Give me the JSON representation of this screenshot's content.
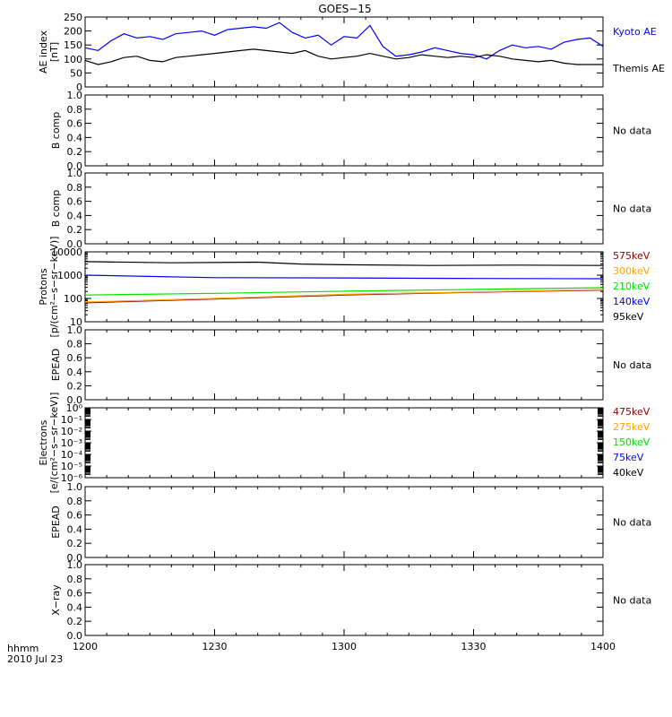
{
  "title": "GOES−15",
  "time_axis": {
    "ticks": [
      "1200",
      "1230",
      "1300",
      "1330",
      "1400"
    ],
    "corner_label_1": "hhmm",
    "corner_label_2": "2010 Jul 23"
  },
  "chart_data": [
    {
      "type": "line",
      "panel": "ae-index",
      "ylabel": "AE index",
      "yunit": "[nT]",
      "ylim": [
        0,
        250
      ],
      "yticks": [
        "0",
        "50",
        "100",
        "150",
        "200",
        "250"
      ],
      "x_unit": "minutes after 12:00 UT",
      "series": [
        {
          "name": "Kyoto AE",
          "color": "#0000ff",
          "x": [
            0,
            3,
            6,
            9,
            12,
            15,
            18,
            21,
            24,
            27,
            30,
            33,
            36,
            39,
            42,
            45,
            48,
            51,
            54,
            57,
            60,
            63,
            66,
            69,
            72,
            75,
            78,
            81,
            84,
            87,
            90,
            93,
            96,
            99,
            102,
            105,
            108,
            111,
            114,
            117,
            120
          ],
          "y": [
            140,
            130,
            165,
            190,
            175,
            180,
            170,
            190,
            195,
            200,
            185,
            205,
            210,
            215,
            210,
            230,
            195,
            175,
            185,
            150,
            180,
            175,
            220,
            145,
            110,
            115,
            125,
            140,
            130,
            120,
            115,
            100,
            130,
            150,
            140,
            145,
            135,
            160,
            170,
            175,
            145
          ]
        },
        {
          "name": "Themis AE",
          "color": "#000000",
          "x": [
            0,
            3,
            6,
            9,
            12,
            15,
            18,
            21,
            24,
            27,
            30,
            33,
            36,
            39,
            42,
            45,
            48,
            51,
            54,
            57,
            60,
            63,
            66,
            69,
            72,
            75,
            78,
            81,
            84,
            87,
            90,
            93,
            96,
            99,
            102,
            105,
            108,
            111,
            114,
            117,
            120
          ],
          "y": [
            95,
            80,
            90,
            105,
            110,
            95,
            90,
            105,
            110,
            115,
            120,
            125,
            130,
            135,
            130,
            125,
            120,
            130,
            110,
            100,
            105,
            110,
            120,
            110,
            100,
            105,
            115,
            110,
            105,
            110,
            105,
            115,
            110,
            100,
            95,
            90,
            95,
            85,
            80,
            80,
            80
          ]
        }
      ]
    },
    {
      "type": "line",
      "panel": "b-comp-1",
      "ylabel": "B comp",
      "ylim": [
        0,
        1
      ],
      "yticks": [
        "0.0",
        "0.2",
        "0.4",
        "0.6",
        "0.8",
        "1.0"
      ],
      "status": "No data",
      "series": []
    },
    {
      "type": "line",
      "panel": "b-comp-2",
      "ylabel": "B comp",
      "ylim": [
        0,
        1
      ],
      "yticks": [
        "0.0",
        "0.2",
        "0.4",
        "0.6",
        "0.8",
        "1.0"
      ],
      "status": "No data",
      "series": []
    },
    {
      "type": "line",
      "panel": "protons",
      "ylabel": "Protons",
      "yunit": "[p/(cm²−s−sr−keV)]",
      "yscale": "log",
      "ylim": [
        10,
        10000
      ],
      "yticks": [
        "10",
        "100",
        "1000",
        "10000"
      ],
      "x_unit": "minutes after 12:00 UT",
      "series": [
        {
          "name": "575keV",
          "color": "#8b0000",
          "x": [
            0,
            30,
            60,
            90,
            120
          ],
          "y": [
            65,
            95,
            140,
            185,
            230
          ]
        },
        {
          "name": "300keV",
          "color": "#ffa500",
          "x": [
            0,
            30,
            60,
            90,
            120
          ],
          "y": [
            70,
            100,
            150,
            190,
            240
          ]
        },
        {
          "name": "210keV",
          "color": "#00e000",
          "x": [
            0,
            30,
            60,
            90,
            120
          ],
          "y": [
            140,
            165,
            205,
            245,
            290
          ]
        },
        {
          "name": "140keV",
          "color": "#0000ff",
          "x": [
            0,
            30,
            60,
            90,
            120
          ],
          "y": [
            1000,
            780,
            760,
            720,
            700
          ]
        },
        {
          "name": "95keV",
          "color": "#000000",
          "x": [
            0,
            20,
            40,
            50,
            60,
            80,
            100,
            120
          ],
          "y": [
            3800,
            3400,
            3600,
            3000,
            2800,
            2600,
            2700,
            2600
          ]
        }
      ]
    },
    {
      "type": "line",
      "panel": "epead-1",
      "ylabel": "EPEAD",
      "ylim": [
        0,
        1
      ],
      "yticks": [
        "0.0",
        "0.2",
        "0.4",
        "0.6",
        "0.8",
        "1.0"
      ],
      "status": "No data",
      "series": []
    },
    {
      "type": "line",
      "panel": "electrons",
      "ylabel": "Electrons",
      "yunit": "[e/(cm²−s−sr−keV)]",
      "yscale": "log",
      "ylim": [
        1e-06,
        1
      ],
      "yticks": [
        "10⁰",
        "10⁻¹",
        "10⁻²",
        "10⁻³",
        "10⁻⁴",
        "10⁻⁵",
        "10⁻⁶"
      ],
      "series": [
        {
          "name": "475keV",
          "color": "#8b0000",
          "x": [],
          "y": []
        },
        {
          "name": "275keV",
          "color": "#ffa500",
          "x": [],
          "y": []
        },
        {
          "name": "150keV",
          "color": "#00e000",
          "x": [],
          "y": []
        },
        {
          "name": "75keV",
          "color": "#0000ff",
          "x": [],
          "y": []
        },
        {
          "name": "40keV",
          "color": "#000000",
          "x": [],
          "y": []
        }
      ]
    },
    {
      "type": "line",
      "panel": "epead-2",
      "ylabel": "EPEAD",
      "ylim": [
        0,
        1
      ],
      "yticks": [
        "0.0",
        "0.2",
        "0.4",
        "0.6",
        "0.8",
        "1.0"
      ],
      "status": "No data",
      "series": []
    },
    {
      "type": "line",
      "panel": "x-ray",
      "ylabel": "X−ray",
      "ylim": [
        0,
        1
      ],
      "yticks": [
        "0.0",
        "0.2",
        "0.4",
        "0.6",
        "0.8",
        "1.0"
      ],
      "status": "No data",
      "series": []
    }
  ]
}
